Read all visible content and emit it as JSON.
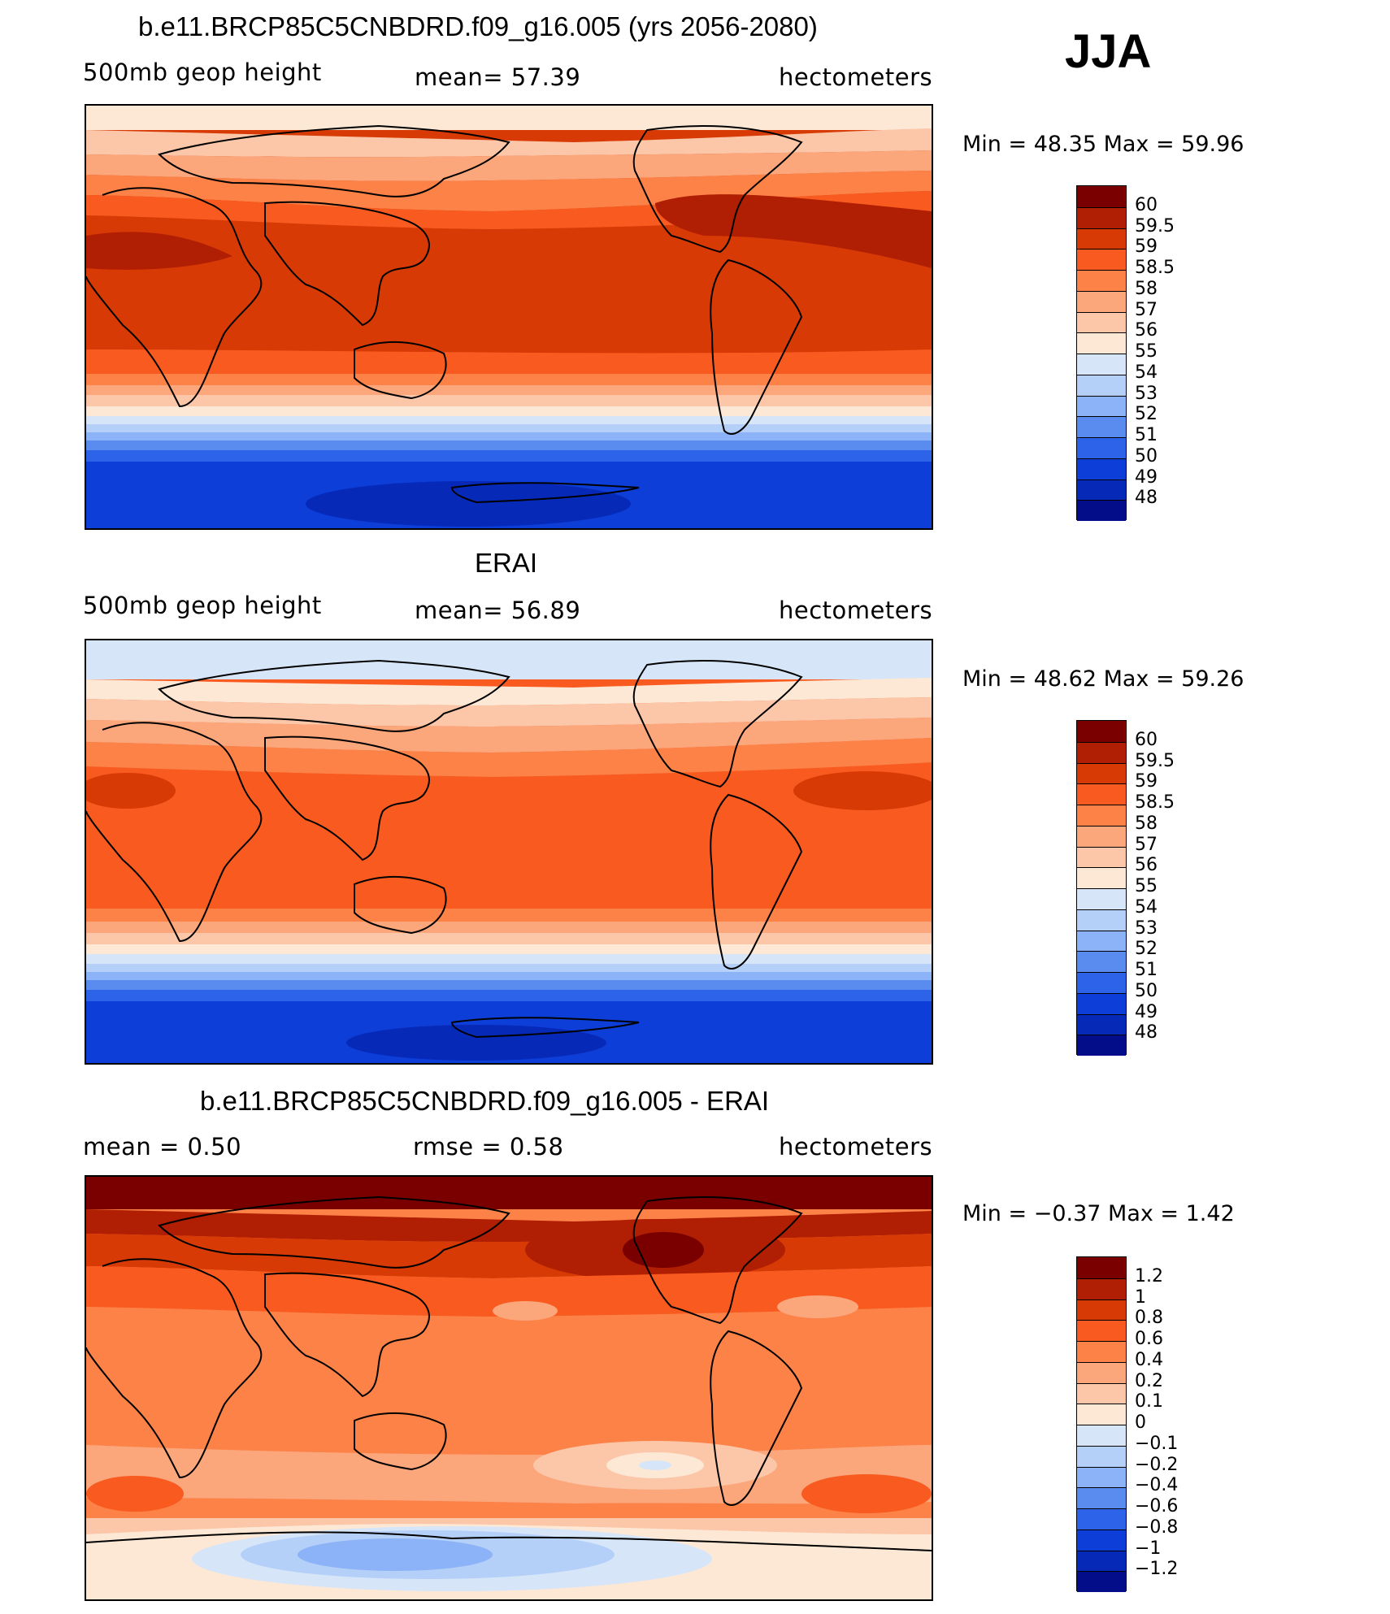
{
  "season": "JJA",
  "panels": [
    {
      "title": "b.e11.BRCP85C5CNBDRD.f09_g16.005 (yrs 2056-2080)",
      "variable": "500mb geop height",
      "stat_text": "mean=  57.39",
      "units": "hectometers",
      "minmax": "Min =  48.35 Max =  59.96",
      "colorbar": {
        "labels": [
          "60",
          "59.5",
          "59",
          "58.5",
          "58",
          "57",
          "56",
          "55",
          "54",
          "53",
          "52",
          "51",
          "50",
          "49",
          "48"
        ],
        "colors": [
          "#7a0000",
          "#b01e03",
          "#d73a05",
          "#f85a1f",
          "#fc8248",
          "#fca67c",
          "#fcc6a8",
          "#fde8d6",
          "#d6e6f8",
          "#b5d0f8",
          "#8cb2f7",
          "#5a8cf0",
          "#2c63e8",
          "#0e3ed8",
          "#0729b8",
          "#030d8a"
        ]
      }
    },
    {
      "title": "ERAI",
      "variable": "500mb geop height",
      "stat_text": "mean=  56.89",
      "units": "hectometers",
      "minmax": "Min =  48.62 Max =  59.26",
      "colorbar": {
        "labels": [
          "60",
          "59.5",
          "59",
          "58.5",
          "58",
          "57",
          "56",
          "55",
          "54",
          "53",
          "52",
          "51",
          "50",
          "49",
          "48"
        ],
        "colors": [
          "#7a0000",
          "#b01e03",
          "#d73a05",
          "#f85a1f",
          "#fc8248",
          "#fca67c",
          "#fcc6a8",
          "#fde8d6",
          "#d6e6f8",
          "#b5d0f8",
          "#8cb2f7",
          "#5a8cf0",
          "#2c63e8",
          "#0e3ed8",
          "#0729b8",
          "#030d8a"
        ]
      }
    },
    {
      "title": "b.e11.BRCP85C5CNBDRD.f09_g16.005 - ERAI",
      "variable": "mean =   0.50",
      "stat_text": "rmse =   0.58",
      "units": "hectometers",
      "minmax": "Min =  −0.37 Max =   1.42",
      "colorbar": {
        "labels": [
          "1.2",
          "1",
          "0.8",
          "0.6",
          "0.4",
          "0.2",
          "0.1",
          "0",
          "−0.1",
          "−0.2",
          "−0.4",
          "−0.6",
          "−0.8",
          "−1",
          "−1.2"
        ],
        "colors": [
          "#7a0000",
          "#b01e03",
          "#d73a05",
          "#f85a1f",
          "#fc8248",
          "#fca67c",
          "#fcc6a8",
          "#fde8d6",
          "#d6e6f8",
          "#b5d0f8",
          "#8cb2f7",
          "#5a8cf0",
          "#2c63e8",
          "#0e3ed8",
          "#0729b8",
          "#030d8a"
        ]
      }
    }
  ]
}
